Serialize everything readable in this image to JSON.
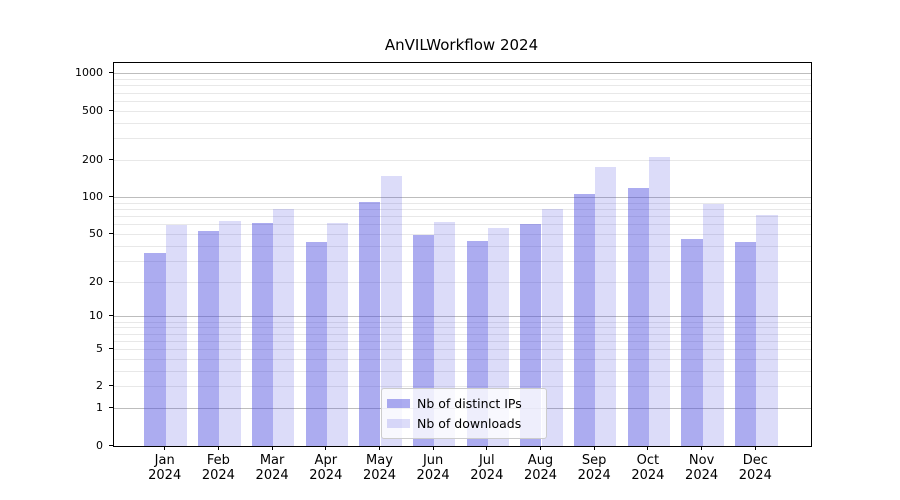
{
  "title": "AnVILWorkflow 2024",
  "colors": {
    "accent_base": "#4646dd",
    "series_distinct_ips": "rgba(70,70,221,0.45)",
    "series_downloads": "rgba(70,70,221,0.19)",
    "grid_major": "#bdbdbd",
    "grid_minor": "#e8e8e8",
    "spine": "#000000"
  },
  "legend": {
    "items": [
      {
        "label": "Nb of distinct IPs"
      },
      {
        "label": "Nb of downloads"
      }
    ]
  },
  "chart_data": {
    "type": "bar",
    "title": "AnVILWorkflow 2024",
    "categories": [
      "Jan",
      "Feb",
      "Mar",
      "Apr",
      "May",
      "Jun",
      "Jul",
      "Aug",
      "Sep",
      "Oct",
      "Nov",
      "Dec"
    ],
    "category_year_line": "2024",
    "series": [
      {
        "name": "Nb of distinct IPs",
        "color": "rgba(70,70,221,0.45)",
        "values": [
          35,
          53,
          62,
          43,
          92,
          49,
          44,
          61,
          107,
          120,
          46,
          43
        ]
      },
      {
        "name": "Nb of downloads",
        "color": "rgba(70,70,221,0.19)",
        "values": [
          60,
          64,
          80,
          62,
          150,
          63,
          56,
          80,
          178,
          215,
          88,
          72
        ]
      }
    ],
    "xlabel": "",
    "ylabel": "",
    "yscale": "log1p",
    "ylim": [
      0,
      1230
    ],
    "y_tick_labels": [
      "1000",
      "500",
      "200",
      "100",
      "50",
      "20",
      "10",
      "5",
      "2",
      "1",
      "0"
    ],
    "y_ticks": [
      1000,
      500,
      200,
      100,
      50,
      20,
      10,
      5,
      2,
      1,
      0
    ],
    "grid": true,
    "legend_position": "lower center"
  }
}
